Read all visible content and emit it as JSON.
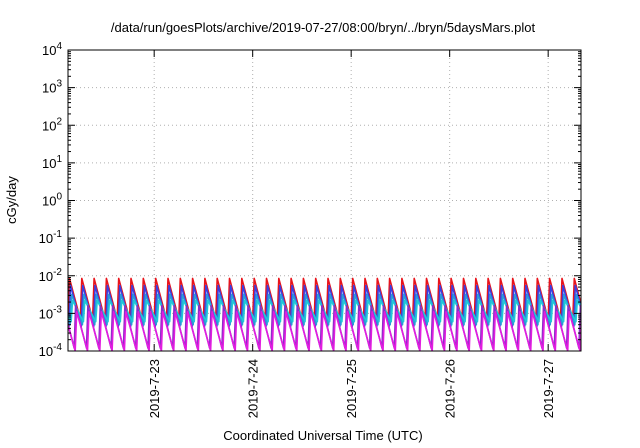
{
  "chart_data": {
    "type": "line",
    "title": "/data/run/goesPlots/archive/2019-07-27/08:00/bryn/../bryn/5daysMars.plot",
    "xlabel": "Coordinated Universal Time (UTC)",
    "ylabel": "cGy/day",
    "yscale": "log",
    "ylim": [
      0.0001,
      10000
    ],
    "xlim": [
      "2019-07-22 03:00",
      "2019-07-27 08:00"
    ],
    "grid": true,
    "x_ticks": [
      "2019-7-23",
      "2019-7-24",
      "2019-7-25",
      "2019-7-26",
      "2019-7-27"
    ],
    "y_ticks": [
      {
        "base": "10",
        "exp": "-4"
      },
      {
        "base": "10",
        "exp": "-3"
      },
      {
        "base": "10",
        "exp": "-2"
      },
      {
        "base": "10",
        "exp": "-1"
      },
      {
        "base": "10",
        "exp": "0"
      },
      {
        "base": "10",
        "exp": "1"
      },
      {
        "base": "10",
        "exp": "2"
      },
      {
        "base": "10",
        "exp": "3"
      },
      {
        "base": "10",
        "exp": "4"
      }
    ],
    "cycle_hours": 3,
    "series": [
      {
        "color": "#e8141b",
        "peak": 0.0085,
        "trough": 0.0007,
        "offset_hours": 0.0
      },
      {
        "color": "#3a3fe0",
        "peak": 0.0055,
        "trough": 0.00045,
        "offset_hours": 0.25
      },
      {
        "color": "#2a9ad8",
        "peak": 0.0032,
        "trough": 0.0005,
        "offset_hours": 0.5
      },
      {
        "color": "#20c8d8",
        "peak": 0.0022,
        "trough": 0.0006,
        "offset_hours": 0.75
      },
      {
        "color": "#8d2cc8",
        "peak": 0.0016,
        "trough": 0.00012,
        "offset_hours": 1.5
      },
      {
        "color": "#e21de0",
        "peak": 0.0011,
        "trough": 0.0001,
        "offset_hours": 1.75
      }
    ]
  }
}
